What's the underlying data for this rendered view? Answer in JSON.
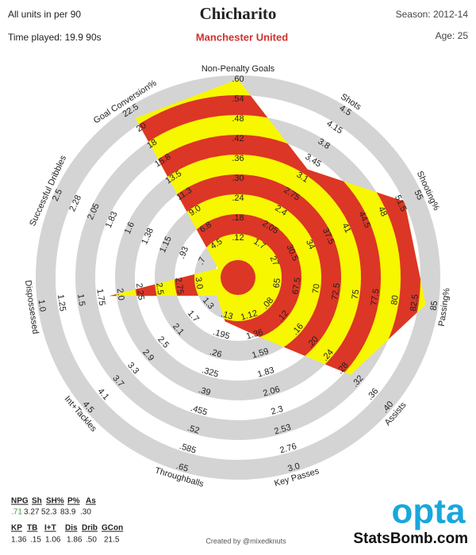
{
  "header": {
    "units_note": "All units in per 90",
    "player": "Chicharito",
    "season": "Season: 2012-14",
    "time_played": "Time played: 19.9 90s",
    "team": "Manchester United",
    "age": "Age: 25"
  },
  "chart_data": {
    "type": "radar",
    "categories": [
      "Non-Penalty Goals",
      "Shots",
      "Shooting%",
      "Passing%",
      "Assists",
      "Key Passes",
      "Throughballs",
      "Int+Tackles",
      "Dispossessed",
      "Successful Dribbles",
      "Goal Conversion%"
    ],
    "values": [
      0.71,
      3.27,
      52.3,
      83.9,
      0.3,
      1.36,
      0.15,
      1.06,
      1.86,
      0.5,
      21.5
    ],
    "value_labels": [
      ".71",
      "3.27",
      "52.3",
      "83.9",
      ".30",
      "1.36",
      ".15",
      "1.06",
      "1.86",
      ".50",
      "21.5"
    ],
    "colors": [
      "#dc3626",
      "#f7f700"
    ],
    "ticks": [
      [
        {
          "value": 0.12,
          "label": ".12"
        },
        {
          "value": 0.18,
          "label": ".18"
        },
        {
          "value": 0.24,
          "label": ".24"
        },
        {
          "value": 0.3,
          "label": ".30"
        },
        {
          "value": 0.36,
          "label": ".36"
        },
        {
          "value": 0.42,
          "label": ".42"
        },
        {
          "value": 0.48,
          "label": ".48"
        },
        {
          "value": 0.54,
          "label": ".54"
        },
        {
          "value": 0.6,
          "label": ".60"
        }
      ],
      [
        1.7,
        2.05,
        2.4,
        2.75,
        3.1,
        3.45,
        3.8,
        4.15,
        4.5
      ],
      [
        27,
        30.5,
        34,
        37.5,
        41,
        44.5,
        48,
        51.5,
        55
      ],
      [
        65,
        67.5,
        70,
        72.5,
        75,
        77.5,
        80,
        82.5,
        85
      ],
      [
        {
          "value": 0.08,
          "label": ".08"
        },
        {
          "value": 0.12,
          "label": ".12"
        },
        {
          "value": 0.16,
          "label": ".16"
        },
        {
          "value": 0.2,
          "label": ".20"
        },
        {
          "value": 0.24,
          "label": ".24"
        },
        {
          "value": 0.28,
          "label": ".28"
        },
        {
          "value": 0.32,
          "label": ".32"
        },
        {
          "value": 0.36,
          "label": ".36"
        },
        {
          "value": 0.4,
          "label": ".40"
        }
      ],
      [
        1.12,
        1.36,
        1.59,
        1.83,
        2.06,
        2.3,
        2.53,
        2.76,
        {
          "value": 3,
          "label": "3.0"
        }
      ],
      [
        {
          "value": 0.13,
          "label": ".13"
        },
        {
          "value": 0.195,
          "label": ".195"
        },
        {
          "value": 0.26,
          "label": ".26"
        },
        {
          "value": 0.325,
          "label": ".325"
        },
        {
          "value": 0.39,
          "label": ".39"
        },
        {
          "value": 0.455,
          "label": ".455"
        },
        {
          "value": 0.52,
          "label": ".52"
        },
        {
          "value": 0.585,
          "label": ".585"
        },
        {
          "value": 0.65,
          "label": ".65"
        }
      ],
      [
        1.3,
        1.7,
        2.1,
        2.5,
        2.9,
        3.3,
        3.7,
        4.1,
        4.5
      ],
      [
        {
          "value": 3,
          "label": "3.0"
        },
        2.75,
        2.5,
        2.25,
        {
          "value": 2,
          "label": "2.0"
        },
        1.75,
        1.5,
        1.25,
        {
          "value": 1,
          "label": "1.0"
        }
      ],
      [
        {
          "value": 0.7,
          "label": ".7"
        },
        {
          "value": 0.93,
          "label": ".93"
        },
        1.15,
        1.38,
        1.6,
        1.83,
        2.05,
        2.28,
        2.5
      ],
      [
        4.5,
        6.8,
        {
          "value": 9,
          "label": "9.0"
        },
        11.3,
        13.5,
        15.8,
        18,
        20,
        22.5
      ]
    ]
  },
  "table": {
    "headers_1": [
      "NPG",
      "Sh",
      "SH%",
      "P%",
      "As"
    ],
    "headers_2": [
      "KP",
      "TB",
      "I+T",
      "Dis",
      "Drib",
      "GCon"
    ]
  },
  "footer": {
    "credit": "Created by @mixedknuts",
    "logo": "opta",
    "site": "StatsBomb.com"
  }
}
